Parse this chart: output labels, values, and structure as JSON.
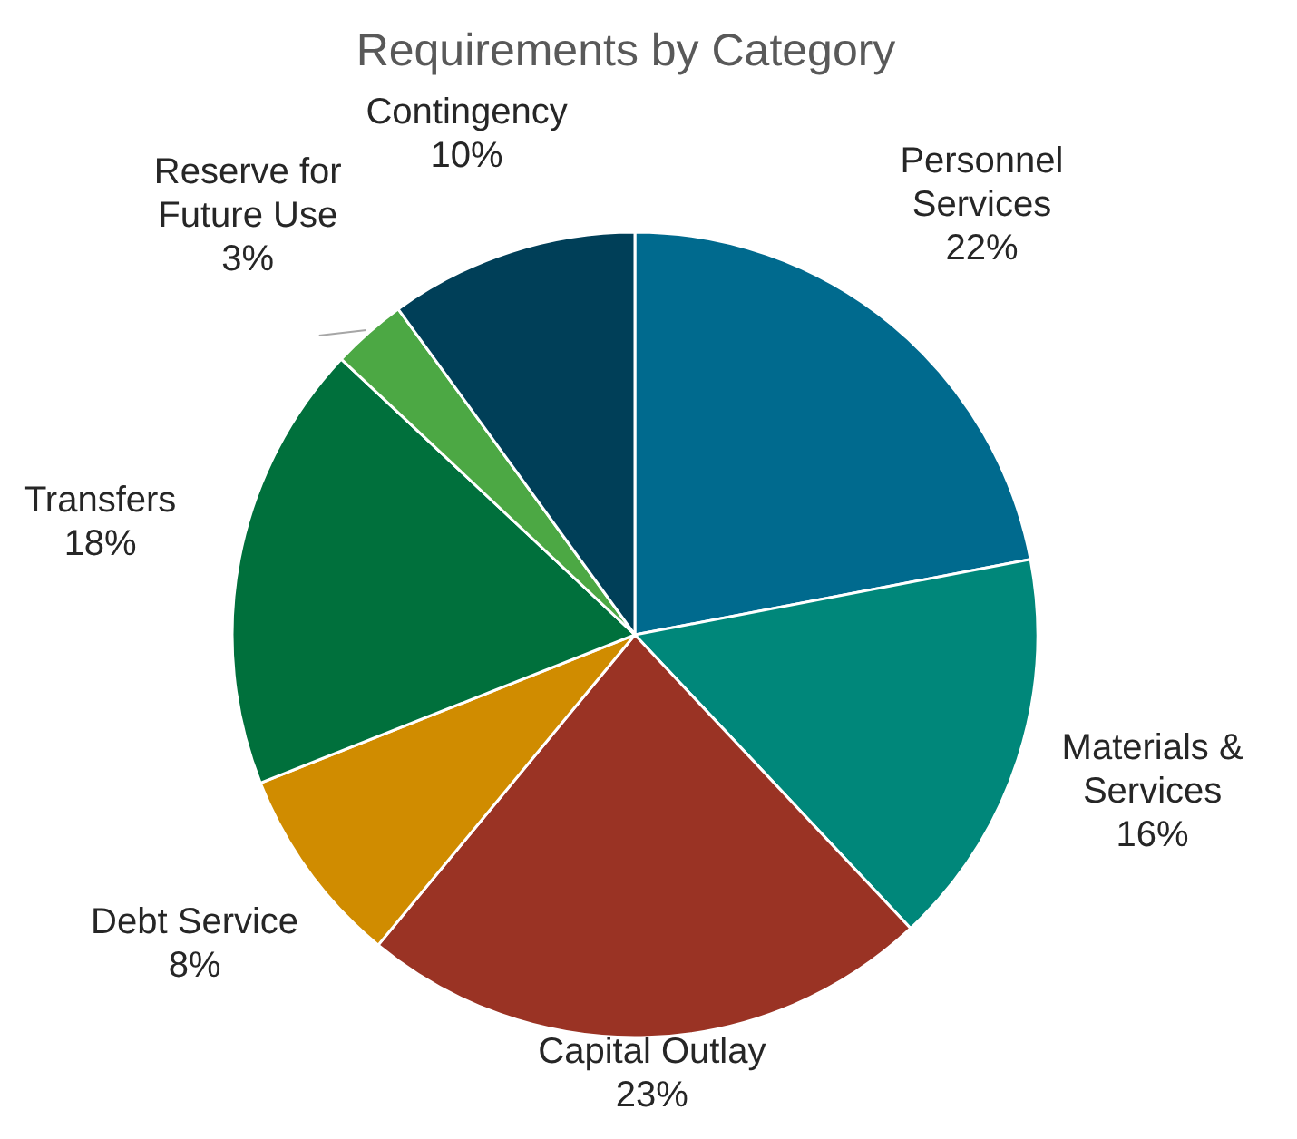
{
  "chart_data": {
    "type": "pie",
    "title": "Requirements by Category",
    "categories": [
      "Personnel Services",
      "Materials & Services",
      "Capital Outlay",
      "Debt Service",
      "Transfers",
      "Reserve for Future Use",
      "Contingency"
    ],
    "values": [
      22,
      16,
      23,
      8,
      18,
      3,
      10
    ],
    "colors": [
      "#006a8e",
      "#00877a",
      "#9a3324",
      "#d08c00",
      "#00703c",
      "#4ca844",
      "#003f58"
    ],
    "value_labels": [
      "22%",
      "16%",
      "23%",
      "8%",
      "18%",
      "3%",
      "10%"
    ]
  }
}
